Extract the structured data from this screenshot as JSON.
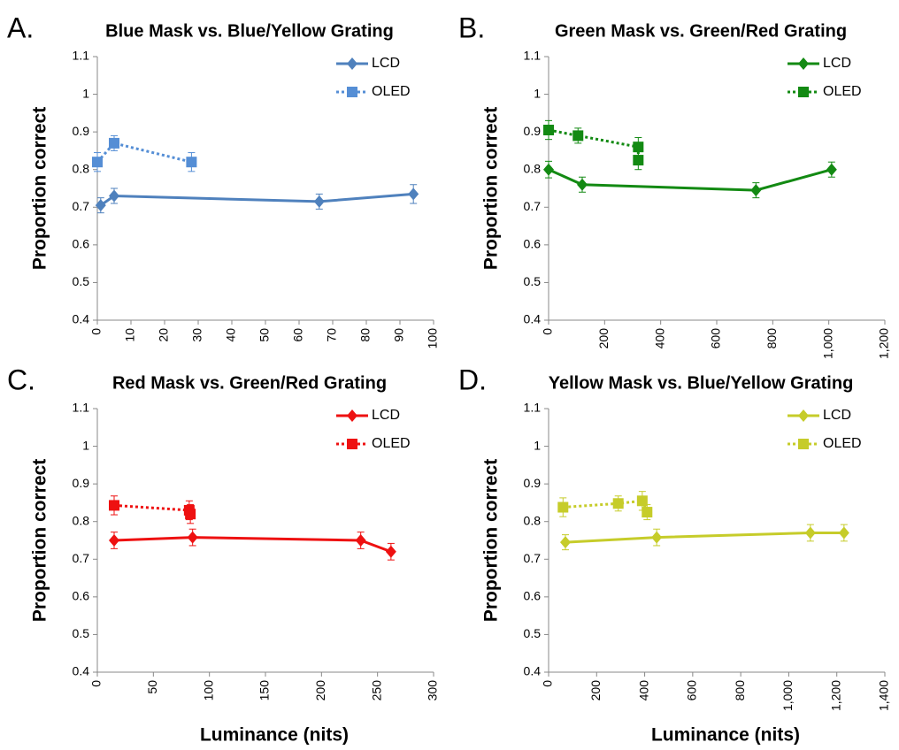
{
  "chart_data": [
    {
      "type": "line",
      "panel_label": "A.",
      "title": "Blue Mask vs. Blue/Yellow Grating",
      "y_label": "Proportion correct",
      "xlim": [
        0,
        100
      ],
      "xticks": [
        0,
        10,
        20,
        30,
        40,
        50,
        60,
        70,
        80,
        90,
        100
      ],
      "ylim": [
        0.4,
        1.1
      ],
      "yticks": [
        0.4,
        0.5,
        0.6,
        0.7,
        0.8,
        0.9,
        1,
        1.1
      ],
      "legend": "upper right",
      "series": [
        {
          "name": "LCD",
          "color": "#4f81bd",
          "marker": "diamond",
          "line_style": "solid",
          "x": [
            1,
            5,
            66,
            94
          ],
          "values": [
            0.705,
            0.73,
            0.715,
            0.735
          ],
          "errors": [
            0.02,
            0.02,
            0.02,
            0.025
          ]
        },
        {
          "name": "OLED",
          "color": "#558ed5",
          "marker": "square",
          "line_style": "dotted",
          "x": [
            0,
            5,
            28
          ],
          "values": [
            0.82,
            0.87,
            0.82
          ],
          "errors": [
            0.025,
            0.02,
            0.025
          ]
        }
      ]
    },
    {
      "type": "line",
      "panel_label": "B.",
      "title": "Green Mask vs. Green/Red Grating",
      "y_label": "Proportion correct",
      "xlim": [
        0,
        1200
      ],
      "xticks": [
        0,
        200,
        400,
        600,
        800,
        {
          "value": 1000,
          "label": "1,000"
        },
        {
          "value": 1200,
          "label": "1,200"
        }
      ],
      "ylim": [
        0.4,
        1.1
      ],
      "yticks": [
        0.4,
        0.5,
        0.6,
        0.7,
        0.8,
        0.9,
        1,
        1.1
      ],
      "legend": "upper right",
      "series": [
        {
          "name": "LCD",
          "color": "#138a13",
          "marker": "diamond",
          "line_style": "solid",
          "x": [
            0,
            120,
            740,
            1010
          ],
          "values": [
            0.8,
            0.76,
            0.745,
            0.8
          ],
          "errors": [
            0.022,
            0.02,
            0.02,
            0.02
          ]
        },
        {
          "name": "OLED",
          "color": "#138a13",
          "marker": "square",
          "line_style": "dotted",
          "x": [
            0,
            105,
            320,
            320
          ],
          "values": [
            0.905,
            0.89,
            0.86,
            0.825
          ],
          "errors": [
            0.025,
            0.02,
            0.025,
            0.025
          ]
        }
      ]
    },
    {
      "type": "line",
      "panel_label": "C.",
      "title": "Red Mask vs. Green/Red Grating",
      "y_label": "Proportion correct",
      "x_label": "Luminance (nits)",
      "xlim": [
        0,
        300
      ],
      "xticks": [
        0,
        50,
        100,
        150,
        200,
        250,
        300
      ],
      "ylim": [
        0.4,
        1.1
      ],
      "yticks": [
        0.4,
        0.5,
        0.6,
        0.7,
        0.8,
        0.9,
        1,
        1.1
      ],
      "legend": "upper right",
      "series": [
        {
          "name": "LCD",
          "color": "#ee1111",
          "marker": "diamond",
          "line_style": "solid",
          "x": [
            15,
            85,
            235,
            262
          ],
          "values": [
            0.75,
            0.758,
            0.75,
            0.72
          ],
          "errors": [
            0.022,
            0.022,
            0.022,
            0.022
          ]
        },
        {
          "name": "OLED",
          "color": "#ee1111",
          "marker": "square",
          "line_style": "dotted",
          "x": [
            15,
            82,
            83
          ],
          "values": [
            0.843,
            0.83,
            0.82
          ],
          "errors": [
            0.025,
            0.025,
            0.025
          ]
        }
      ]
    },
    {
      "type": "line",
      "panel_label": "D.",
      "title": "Yellow Mask vs. Blue/Yellow Grating",
      "y_label": "Proportion correct",
      "x_label": "Luminance (nits)",
      "xlim": [
        0,
        1400
      ],
      "xticks": [
        0,
        200,
        400,
        600,
        800,
        {
          "value": 1000,
          "label": "1,000"
        },
        {
          "value": 1200,
          "label": "1,200"
        },
        {
          "value": 1400,
          "label": "1,400"
        }
      ],
      "ylim": [
        0.4,
        1.1
      ],
      "yticks": [
        0.4,
        0.5,
        0.6,
        0.7,
        0.8,
        0.9,
        1,
        1.1
      ],
      "legend": "upper right",
      "series": [
        {
          "name": "LCD",
          "color": "#c6cc2a",
          "marker": "diamond",
          "line_style": "solid",
          "x": [
            70,
            450,
            1090,
            1230
          ],
          "values": [
            0.745,
            0.758,
            0.77,
            0.77
          ],
          "errors": [
            0.02,
            0.022,
            0.022,
            0.022
          ]
        },
        {
          "name": "OLED",
          "color": "#c6cc2a",
          "marker": "square",
          "line_style": "dotted",
          "x": [
            60,
            290,
            390,
            410
          ],
          "values": [
            0.838,
            0.848,
            0.855,
            0.825
          ],
          "errors": [
            0.025,
            0.02,
            0.025,
            0.02
          ]
        }
      ]
    }
  ]
}
